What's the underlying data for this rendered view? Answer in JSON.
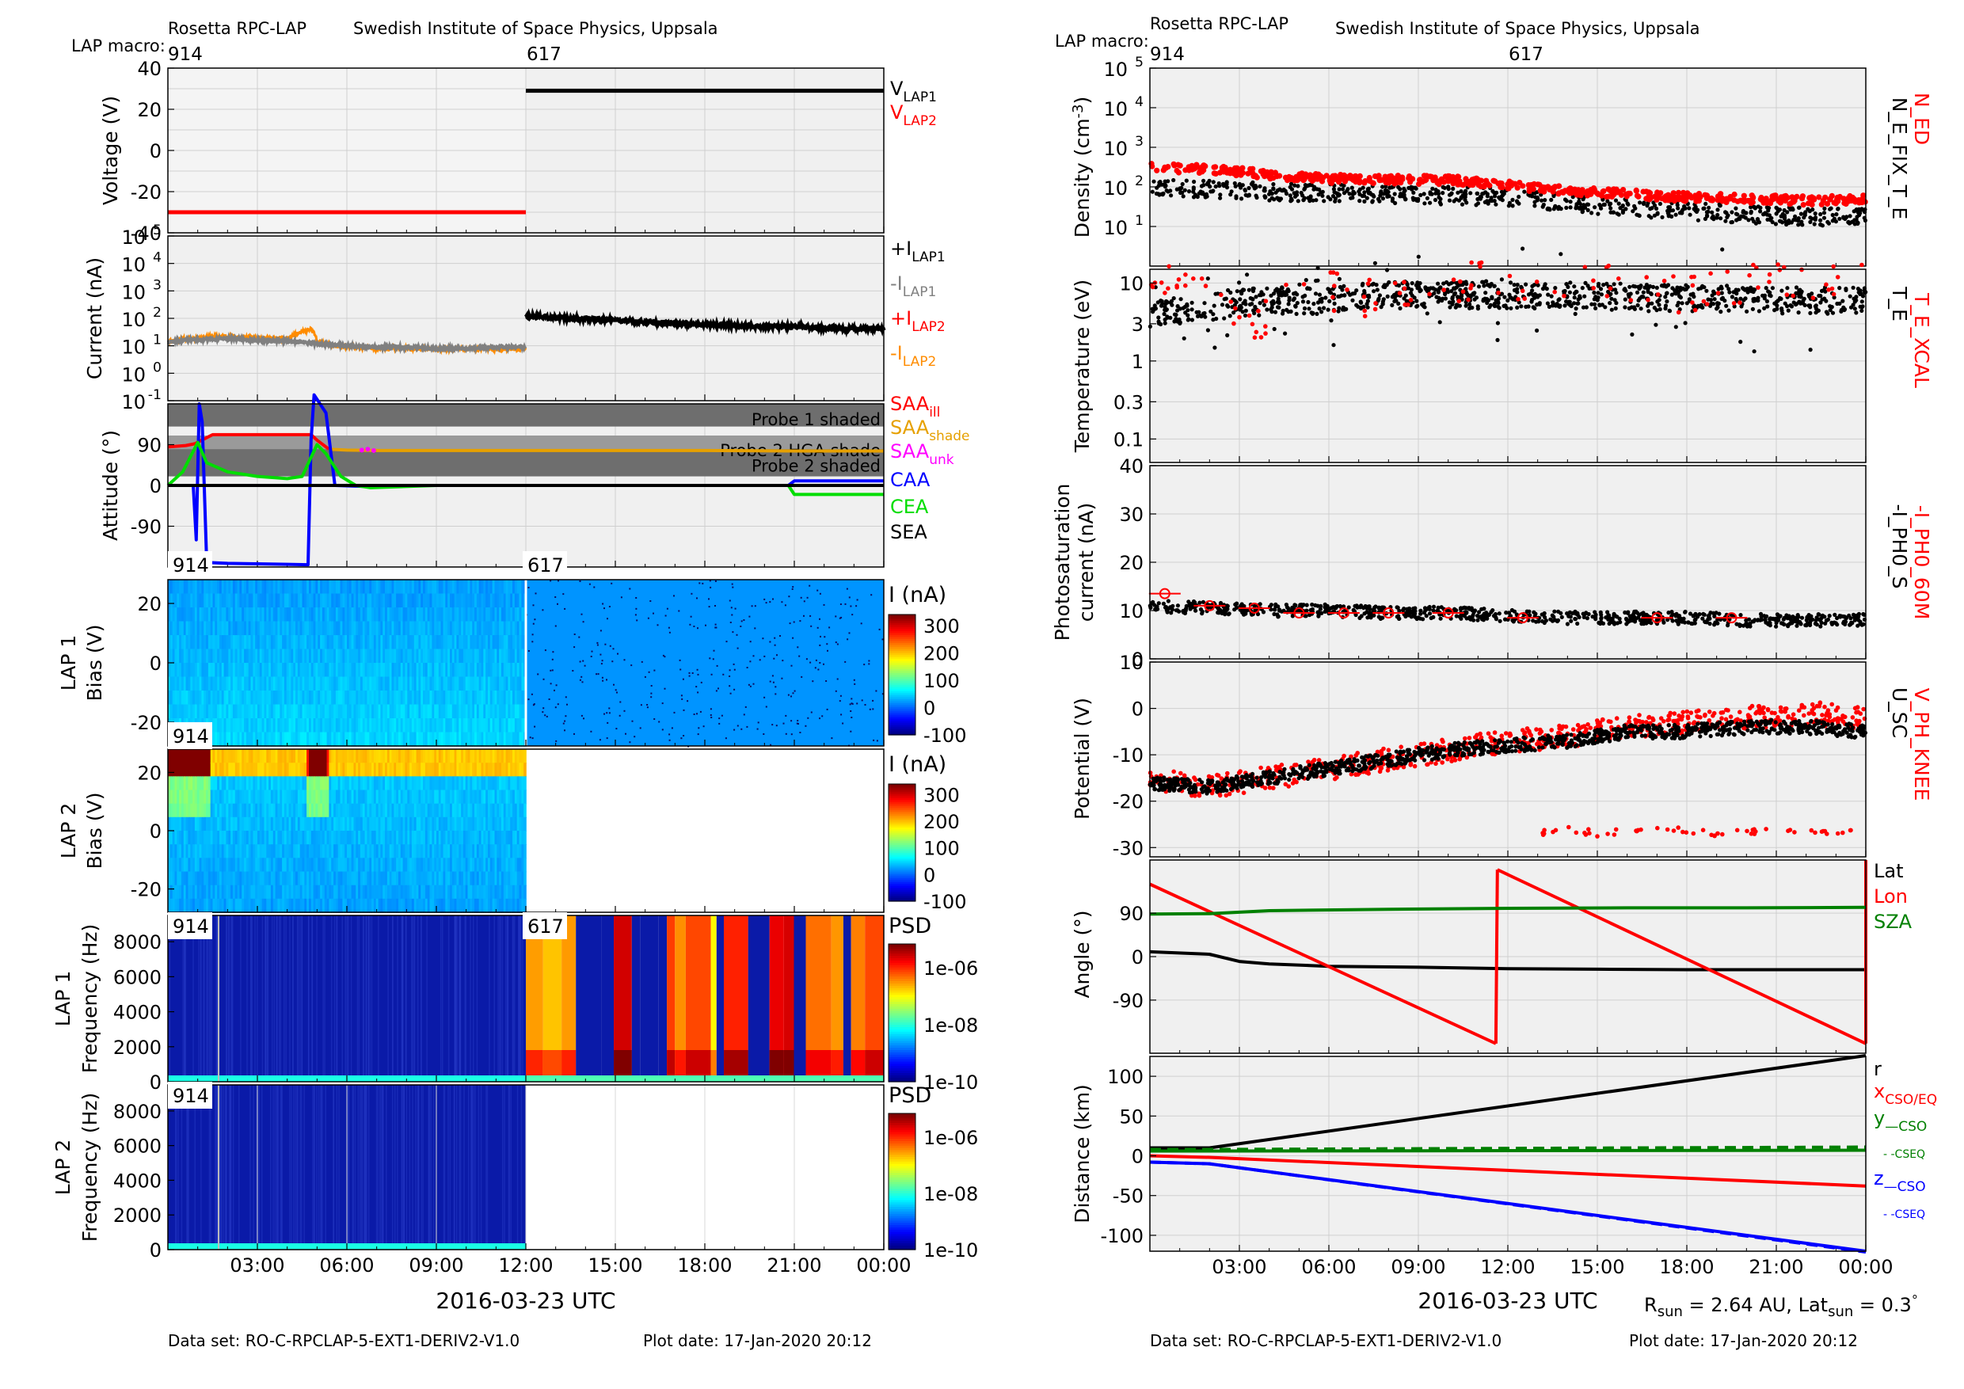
{
  "header": {
    "instrument": "Rosetta RPC-LAP",
    "institute": "Swedish Institute of Space Physics, Uppsala",
    "macro_label": "LAP macro:",
    "macro_first": "914",
    "macro_second": "617"
  },
  "footer": {
    "dataset": "Data set: RO-C-RPCLAP-5-EXT1-DERIV2-V1.0",
    "plot_date": "Plot date: 17-Jan-2020 20:12",
    "rsun_main": "R",
    "rsun_sub": "sun",
    "rsun_val": " = 2.64 AU, Lat",
    "latsun_sub": "sun",
    "latsun_val": " = 0.3",
    "latsun_deg": "°"
  },
  "colors": {
    "lap1": "#000000",
    "lap1_minus": "#808080",
    "lap2": "#ff0000",
    "lap2_minus": "#ff8c00",
    "saa_shade": "#e6a000",
    "saa_unk": "#ff00ff",
    "caa": "#0000ff",
    "cea": "#00dd00",
    "green_dark": "#008000",
    "blue": "#0000ff",
    "axes_bg": "#f0f0f0"
  },
  "time_axis": {
    "ticks": [
      "03:00",
      "06:00",
      "09:00",
      "12:00",
      "15:00",
      "18:00",
      "21:00",
      "00:00"
    ],
    "tick_hours": [
      3,
      6,
      9,
      12,
      15,
      18,
      21,
      24
    ],
    "range_hours": [
      0,
      24
    ],
    "label": "2016-03-23 UTC"
  },
  "chart_data": [
    {
      "id": "voltage",
      "type": "line",
      "ylabel": "Voltage (V)",
      "ylim": [
        -40,
        40
      ],
      "yticks": [
        40,
        20,
        0,
        -20,
        -40
      ],
      "series": [
        {
          "name": "V_LAP1",
          "label_main": "V",
          "label_sub": "LAP1",
          "x": [
            12,
            24
          ],
          "y": [
            29,
            29
          ]
        },
        {
          "name": "V_LAP2",
          "label_main": "V",
          "label_sub": "LAP2",
          "x": [
            0,
            12
          ],
          "y": [
            -30,
            -30
          ]
        }
      ]
    },
    {
      "id": "current",
      "type": "line",
      "ylabel": "Current (nA)",
      "log": true,
      "ylim_exp": [
        -1,
        5
      ],
      "ytick_exps": [
        5,
        4,
        3,
        2,
        1,
        0,
        -1
      ],
      "series": [
        {
          "name": "+I_LAP1",
          "label_main": "+I",
          "label_sub": "LAP1",
          "x": [
            12,
            13,
            14,
            15,
            16,
            17,
            18,
            19,
            20,
            21,
            22,
            23,
            24
          ],
          "y": [
            120,
            105,
            95,
            85,
            75,
            65,
            60,
            55,
            50,
            50,
            45,
            42,
            40
          ]
        },
        {
          "name": "-I_LAP1",
          "label_main": "-I",
          "label_sub": "LAP1",
          "x": [
            0,
            1,
            2,
            3,
            4,
            5,
            6,
            7,
            8,
            9,
            10,
            11,
            12
          ],
          "y": [
            14,
            17,
            18,
            16,
            15,
            12,
            10,
            9,
            9,
            8,
            8,
            9,
            9
          ]
        },
        {
          "name": "+I_LAP2",
          "label_main": "+I",
          "label_sub": "LAP2",
          "x": [],
          "y": []
        },
        {
          "name": "-I_LAP2",
          "label_main": "-I",
          "label_sub": "LAP2",
          "x": [
            0,
            1,
            2,
            3,
            4,
            4.8,
            5,
            5.5,
            6,
            7,
            8,
            9,
            10,
            11,
            12
          ],
          "y": [
            15,
            20,
            22,
            20,
            18,
            40,
            15,
            10,
            9,
            8,
            8,
            7.5,
            7.5,
            7.5,
            7.5
          ]
        }
      ]
    },
    {
      "id": "attitude",
      "type": "line",
      "ylabel": "Attitude (°)",
      "ylim": [
        -180,
        180
      ],
      "yticks": [
        90,
        0,
        -90
      ],
      "shading": [
        {
          "label": "Probe 1 shaded",
          "from": 130,
          "to": 180
        },
        {
          "label": "Probe 2 HGA shade",
          "from": 80,
          "to": 110
        },
        {
          "label": "Probe 2 shaded",
          "from": 20,
          "to": 110
        }
      ],
      "series": [
        {
          "name": "SAA_ill",
          "label_main": "SAA",
          "label_sub": "ill",
          "x": [
            0,
            0.6,
            0.9,
            1.5,
            2,
            3,
            4,
            4.8,
            5.0,
            5.4
          ],
          "y": [
            85,
            88,
            92,
            112,
            112,
            112,
            112,
            112,
            100,
            80
          ]
        },
        {
          "name": "SAA_shade",
          "label_main": "SAA",
          "label_sub": "shade",
          "x": [
            5.4,
            6,
            7,
            9,
            12,
            15,
            18,
            21,
            24
          ],
          "y": [
            80,
            78,
            77,
            77,
            77,
            77,
            77,
            76,
            76
          ]
        },
        {
          "name": "SAA_unk",
          "label_main": "SAA",
          "label_sub": "unk",
          "x": [
            6.5,
            6.7,
            6.9
          ],
          "y": [
            78,
            80,
            77
          ]
        },
        {
          "name": "CAA",
          "label_main": "CAA",
          "label_sub": "",
          "x": [
            0,
            0.85,
            0.95,
            1.05,
            1.15,
            1.3,
            2,
            3,
            4,
            4.7,
            4.8,
            4.9,
            5.1,
            5.3,
            5.6,
            6.5,
            7,
            12,
            17,
            20.8,
            21,
            24
          ],
          "y": [
            0,
            0,
            -120,
            180,
            140,
            -170,
            -172,
            -173,
            -174,
            -175,
            100,
            200,
            180,
            160,
            0,
            -2,
            0,
            0,
            0,
            0,
            10,
            10
          ]
        },
        {
          "name": "CEA",
          "label_main": "CEA",
          "label_sub": "",
          "x": [
            0,
            0.5,
            1.0,
            1.3,
            2,
            3,
            4,
            4.5,
            5.0,
            5.3,
            5.8,
            6.3,
            6.8,
            9,
            12,
            15,
            18,
            20.8,
            21,
            24
          ],
          "y": [
            0,
            30,
            95,
            50,
            30,
            20,
            15,
            20,
            90,
            70,
            20,
            0,
            -5,
            0,
            0,
            0,
            0,
            0,
            -20,
            -20
          ]
        },
        {
          "name": "SEA",
          "label_main": "SEA",
          "label_sub": "",
          "x": [
            0,
            24
          ],
          "y": [
            0,
            0
          ]
        }
      ]
    },
    {
      "id": "lap1_bias",
      "type": "heatmap",
      "ylabel": "Bias (V)",
      "panel_label": "LAP 1",
      "ylim": [
        -28,
        28
      ],
      "yticks": [
        20,
        0,
        -20
      ],
      "macro_tags": [
        "914",
        "617"
      ],
      "colorbar_label": "I (nA)",
      "colorbar_ticks": [
        300,
        200,
        100,
        0,
        -100
      ],
      "colorbar_range": [
        -100,
        340
      ]
    },
    {
      "id": "lap2_bias",
      "type": "heatmap",
      "ylabel": "Bias (V)",
      "panel_label": "LAP 2",
      "ylim": [
        -28,
        28
      ],
      "yticks": [
        20,
        0,
        -20
      ],
      "macro_tags": [
        "914"
      ],
      "colorbar_label": "I (nA)",
      "colorbar_ticks": [
        300,
        200,
        100,
        0,
        -100
      ],
      "colorbar_range": [
        -100,
        340
      ]
    },
    {
      "id": "lap1_psd",
      "type": "heatmap",
      "ylabel": "Frequency (Hz)",
      "panel_label": "LAP 1",
      "ylim": [
        0,
        9500
      ],
      "yticks": [
        8000,
        6000,
        4000,
        2000,
        0
      ],
      "macro_tags": [
        "914",
        "617"
      ],
      "colorbar_label": "PSD",
      "colorbar_ticks": [
        "1e-06",
        "1e-08",
        "1e-10"
      ]
    },
    {
      "id": "lap2_psd",
      "type": "heatmap",
      "ylabel": "Frequency (Hz)",
      "panel_label": "LAP 2",
      "ylim": [
        0,
        9500
      ],
      "yticks": [
        8000,
        6000,
        4000,
        2000,
        0
      ],
      "macro_tags": [
        "914"
      ],
      "colorbar_label": "PSD",
      "colorbar_ticks": [
        "1e-06",
        "1e-08",
        "1e-10"
      ]
    },
    {
      "id": "density",
      "type": "scatter",
      "ylabel": "Density (cm",
      "ylabel_sup": "-3",
      "ylabel_end": ")",
      "log": true,
      "ylim_exp": [
        0,
        5
      ],
      "ytick_exps": [
        5,
        4,
        3,
        2,
        1
      ],
      "series": [
        {
          "name": "N_ED",
          "x": [
            0,
            2,
            4,
            6,
            8,
            10,
            12,
            14,
            16,
            18,
            20,
            22,
            24
          ],
          "y": [
            300,
            280,
            200,
            160,
            150,
            150,
            110,
            80,
            65,
            55,
            50,
            45,
            48
          ]
        },
        {
          "name": "N_E_FIX_T_E",
          "x": [
            0,
            2,
            4,
            6,
            8,
            10,
            12,
            14,
            16,
            18,
            20,
            22,
            24
          ],
          "y": [
            90,
            85,
            75,
            70,
            65,
            60,
            55,
            40,
            30,
            25,
            20,
            18,
            17
          ]
        }
      ]
    },
    {
      "id": "temperature",
      "type": "scatter",
      "ylabel": "Temperature (eV)",
      "log": true,
      "yticks": [
        "10",
        "3",
        "1",
        "0.3",
        "0.1"
      ],
      "ytick_values": [
        10,
        3,
        1,
        0.3,
        0.1
      ],
      "ylim": [
        0.05,
        15
      ],
      "series": [
        {
          "name": "T_E_XCAL",
          "x": [
            0.5,
            1.5,
            2.5,
            3.5,
            5,
            7,
            9,
            11.5,
            12.5,
            15,
            18,
            21
          ],
          "y": [
            12,
            10,
            5,
            2,
            10,
            6,
            8,
            12,
            10,
            11,
            7,
            11
          ]
        },
        {
          "name": "T_E",
          "x": [
            0,
            2,
            4,
            6,
            8,
            10,
            12,
            14,
            16,
            18,
            20,
            22,
            24
          ],
          "y": [
            4,
            5,
            6,
            6,
            7,
            7,
            7,
            7,
            6.5,
            6.5,
            6,
            6,
            6
          ]
        }
      ]
    },
    {
      "id": "photosaturation",
      "type": "scatter",
      "ylabel": "Photosaturation",
      "ylabel2": "current (nA)",
      "ylim": [
        0,
        40
      ],
      "yticks": [
        40,
        30,
        20,
        10,
        0
      ],
      "series": [
        {
          "name": "-I_PH0_60M",
          "x": [
            0.5,
            2,
            3.5,
            5,
            6.5,
            8,
            10,
            12.5,
            17,
            19.5
          ],
          "y": [
            13.5,
            11,
            10.5,
            9.5,
            9.5,
            9.5,
            9.5,
            8.5,
            8.5,
            8.5
          ]
        },
        {
          "name": "-I_PH0_S",
          "x": [
            0,
            2,
            4,
            6,
            8,
            10,
            12,
            14,
            16,
            18,
            20,
            22,
            24
          ],
          "y": [
            11,
            10.5,
            10,
            10,
            9.5,
            9.5,
            9,
            8.5,
            8.5,
            8.5,
            8,
            8,
            8
          ]
        }
      ]
    },
    {
      "id": "potential",
      "type": "scatter",
      "ylabel": "Potential (V)",
      "ylim": [
        -32,
        10
      ],
      "yticks": [
        10,
        0,
        -10,
        -20,
        -30
      ],
      "series": [
        {
          "name": "V_PH_KNEE",
          "x": [
            0,
            2,
            4,
            6,
            8,
            10,
            12,
            14,
            16,
            18,
            20,
            22,
            24
          ],
          "y": [
            -15,
            -17,
            -15,
            -13,
            -11,
            -9,
            -7,
            -6,
            -4,
            -3,
            -2,
            -1,
            -2
          ]
        },
        {
          "name": "U_SC",
          "x": [
            0,
            2,
            4,
            6,
            8,
            10,
            12,
            14,
            16,
            18,
            20,
            22,
            24
          ],
          "y": [
            -16,
            -17,
            -15,
            -13,
            -11,
            -9,
            -8,
            -7,
            -5,
            -5,
            -4,
            -4,
            -5
          ]
        },
        {
          "name": "V_PH_KNEE_low",
          "x": [
            13,
            14,
            15,
            17,
            19,
            21,
            23
          ],
          "y": [
            -27,
            -26,
            -27,
            -26,
            -27,
            -26,
            -27
          ]
        }
      ]
    },
    {
      "id": "angle",
      "type": "line",
      "ylabel": "Angle (°)",
      "ylim": [
        -200,
        200
      ],
      "yticks": [
        90,
        0,
        -90
      ],
      "series": [
        {
          "name": "Lat",
          "x": [
            0,
            2,
            3,
            4,
            6,
            9,
            12,
            15,
            18,
            21,
            24
          ],
          "y": [
            10,
            5,
            -10,
            -15,
            -20,
            -22,
            -25,
            -26,
            -27,
            -27,
            -27
          ]
        },
        {
          "name": "Lon",
          "x": [
            0,
            11.6,
            11.65,
            24
          ],
          "y": [
            150,
            -180,
            180,
            -180
          ]
        },
        {
          "name": "SZA",
          "x": [
            0,
            2,
            4,
            8,
            12,
            16,
            20,
            24
          ],
          "y": [
            88,
            89,
            95,
            98,
            100,
            101,
            101,
            102
          ]
        }
      ]
    },
    {
      "id": "distance",
      "type": "line",
      "ylabel": "Distance (km)",
      "ylim": [
        -120,
        125
      ],
      "yticks": [
        100,
        50,
        0,
        -50,
        -100
      ],
      "series": [
        {
          "name": "r",
          "label_main": "r",
          "label_sub": "",
          "x": [
            0,
            2,
            24
          ],
          "y": [
            10,
            10,
            126
          ]
        },
        {
          "name": "x_CSO/EQ",
          "label_main": "x",
          "label_sub": "CSO/EQ",
          "x": [
            0,
            2,
            24
          ],
          "y": [
            0,
            -2,
            -38
          ]
        },
        {
          "name": "y_CSO",
          "label_main": "y",
          "label_sub": "—CSO",
          "x": [
            0,
            2,
            24
          ],
          "y": [
            6,
            6,
            7
          ]
        },
        {
          "name": "y_CSEQ",
          "label_main": "",
          "label_sub": "- -CSEQ",
          "x": [
            0,
            2,
            24
          ],
          "y": [
            8,
            8,
            11
          ]
        },
        {
          "name": "z_CSO",
          "label_main": "z",
          "label_sub": "—CSO",
          "x": [
            0,
            2,
            24
          ],
          "y": [
            -8,
            -10,
            -120
          ]
        },
        {
          "name": "z_CSEQ",
          "label_main": "",
          "label_sub": "- -CSEQ",
          "x": [
            0,
            2,
            24
          ],
          "y": [
            -8,
            -10,
            -121
          ]
        }
      ]
    }
  ]
}
